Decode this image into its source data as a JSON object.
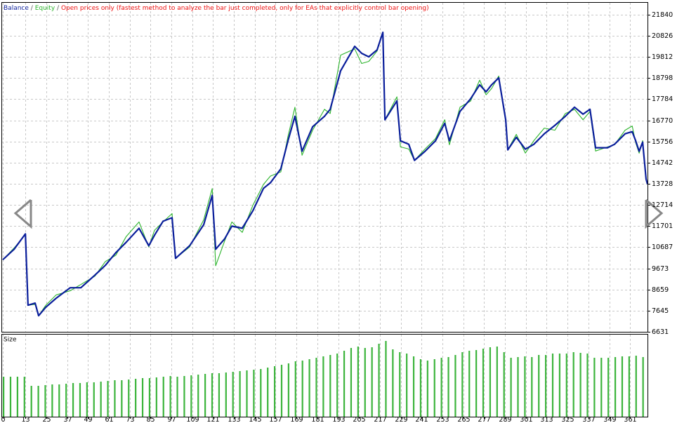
{
  "chart_data": [
    {
      "type": "line",
      "note": "Open prices only (fastest method to analyze the bar just completed, only for EAs that explicitly control bar opening)",
      "separator": "/",
      "x": [
        0,
        6.5,
        13,
        14.5,
        18.6,
        20.6,
        24.7,
        30.7,
        38.8,
        44.9,
        53,
        59,
        65,
        71,
        78.4,
        84,
        87.3,
        92.2,
        97.4,
        99.4,
        107.5,
        115.6,
        120.5,
        122.5,
        127.7,
        131.8,
        137.8,
        143.9,
        150,
        154,
        160,
        164.1,
        168.1,
        172.2,
        178.3,
        185.1,
        188.4,
        194.4,
        202.5,
        206.5,
        210.6,
        215.4,
        218.7,
        219.9,
        226.8,
        228.8,
        233.6,
        236.9,
        243,
        249,
        254.3,
        257,
        263.1,
        269.2,
        274.4,
        278.1,
        281.3,
        285.4,
        289.4,
        290.6,
        295.5,
        300.7,
        305.6,
        311.6,
        317.7,
        323.7,
        329,
        333.9,
        337.9,
        341.1,
        348,
        352,
        358.1,
        362.2,
        364.2,
        366.2,
        368.2,
        370.2,
        371
      ],
      "series": [
        {
          "name": "Balance",
          "color": "#0a1e9b",
          "values": [
            10088,
            10591,
            11329,
            7906,
            8007,
            7403,
            7806,
            8242,
            8745,
            8745,
            9349,
            9819,
            10423,
            10927,
            11598,
            10759,
            11262,
            11933,
            12101,
            10155,
            10759,
            11765,
            13175,
            10591,
            11094,
            11698,
            11598,
            12437,
            13511,
            13779,
            14450,
            15793,
            16967,
            15289,
            16464,
            16967,
            17303,
            19149,
            20323,
            19987,
            19819,
            20155,
            20994,
            16799,
            17706,
            15793,
            15625,
            14853,
            15289,
            15793,
            16632,
            15793,
            17202,
            17806,
            18478,
            18142,
            18478,
            18813,
            16799,
            15356,
            15961,
            15390,
            15625,
            16128,
            16531,
            16967,
            17404,
            17068,
            17303,
            15457,
            15457,
            15625,
            16128,
            16229,
            15793,
            15289,
            15726,
            13947,
            13712
          ]
        },
        {
          "name": "Equity",
          "color": "#2db42d",
          "values": [
            10088,
            10650,
            11300,
            7906,
            7950,
            7403,
            7900,
            8400,
            8600,
            8900,
            9300,
            10000,
            10300,
            11200,
            11900,
            10700,
            11500,
            11900,
            12300,
            10155,
            10700,
            12000,
            13500,
            9800,
            11000,
            11900,
            11400,
            12700,
            13700,
            14100,
            14300,
            16000,
            17400,
            15100,
            16300,
            17300,
            17100,
            19900,
            20200,
            19500,
            19600,
            20100,
            20994,
            16799,
            17900,
            15500,
            15400,
            14853,
            15400,
            15900,
            16800,
            15600,
            17400,
            17700,
            18700,
            18000,
            18300,
            18900,
            16799,
            15356,
            16100,
            15200,
            15800,
            16400,
            16300,
            17100,
            17300,
            16800,
            17200,
            15300,
            15500,
            15600,
            16300,
            16500,
            15700,
            15200,
            15800,
            13947,
            13712
          ]
        }
      ],
      "xlim": [
        0,
        371
      ],
      "ylim": [
        6631,
        22410
      ],
      "yticks": [
        6631,
        7645,
        8659,
        9673,
        10687,
        11701,
        12714,
        13728,
        14742,
        15756,
        16770,
        17784,
        18798,
        19812,
        20826,
        21840
      ],
      "grid": true
    },
    {
      "type": "bar",
      "x": [
        0,
        4,
        8,
        12,
        16,
        20,
        24,
        28,
        32,
        36,
        40,
        44,
        48,
        52,
        56,
        60,
        64,
        68,
        72,
        76,
        80,
        84,
        88,
        92,
        96,
        100,
        104,
        108,
        112,
        116,
        120,
        124,
        128,
        132,
        136,
        140,
        144,
        148,
        152,
        156,
        160,
        164,
        168,
        172,
        176,
        180,
        184,
        188,
        192,
        196,
        200,
        204,
        208,
        212,
        216,
        220,
        224,
        228,
        232,
        236,
        240,
        244,
        248,
        252,
        256,
        260,
        264,
        268,
        272,
        276,
        280,
        284,
        288,
        292,
        296,
        300,
        304,
        308,
        312,
        316,
        320,
        324,
        328,
        332,
        336,
        340,
        344,
        348,
        352,
        356,
        360,
        364,
        368
      ],
      "series": [
        {
          "name": "Size",
          "color": "#3cb43c",
          "values": [
            0.57,
            0.57,
            0.57,
            0.57,
            0.44,
            0.44,
            0.45,
            0.46,
            0.46,
            0.47,
            0.48,
            0.48,
            0.49,
            0.49,
            0.5,
            0.51,
            0.52,
            0.52,
            0.53,
            0.54,
            0.55,
            0.55,
            0.56,
            0.57,
            0.58,
            0.57,
            0.58,
            0.59,
            0.6,
            0.61,
            0.62,
            0.62,
            0.63,
            0.64,
            0.65,
            0.66,
            0.67,
            0.68,
            0.7,
            0.72,
            0.74,
            0.76,
            0.79,
            0.8,
            0.82,
            0.84,
            0.86,
            0.88,
            0.9,
            0.94,
            0.98,
            1,
            0.98,
            0.99,
            1.04,
            1.08,
            0.96,
            0.92,
            0.9,
            0.86,
            0.82,
            0.8,
            0.82,
            0.84,
            0.85,
            0.88,
            0.92,
            0.94,
            0.95,
            0.97,
            0.99,
            1,
            0.92,
            0.84,
            0.85,
            0.86,
            0.85,
            0.88,
            0.88,
            0.9,
            0.9,
            0.9,
            0.92,
            0.91,
            0.9,
            0.84,
            0.84,
            0.84,
            0.85,
            0.86,
            0.86,
            0.87,
            0.85
          ]
        }
      ],
      "xlim": [
        0,
        371
      ],
      "ylim": [
        0,
        1.17
      ],
      "xticks": [
        0,
        13,
        25,
        37,
        49,
        61,
        73,
        85,
        97,
        109,
        121,
        133,
        145,
        157,
        169,
        181,
        193,
        205,
        217,
        229,
        241,
        253,
        265,
        277,
        289,
        301,
        313,
        325,
        337,
        349,
        361
      ],
      "grid": true
    }
  ]
}
